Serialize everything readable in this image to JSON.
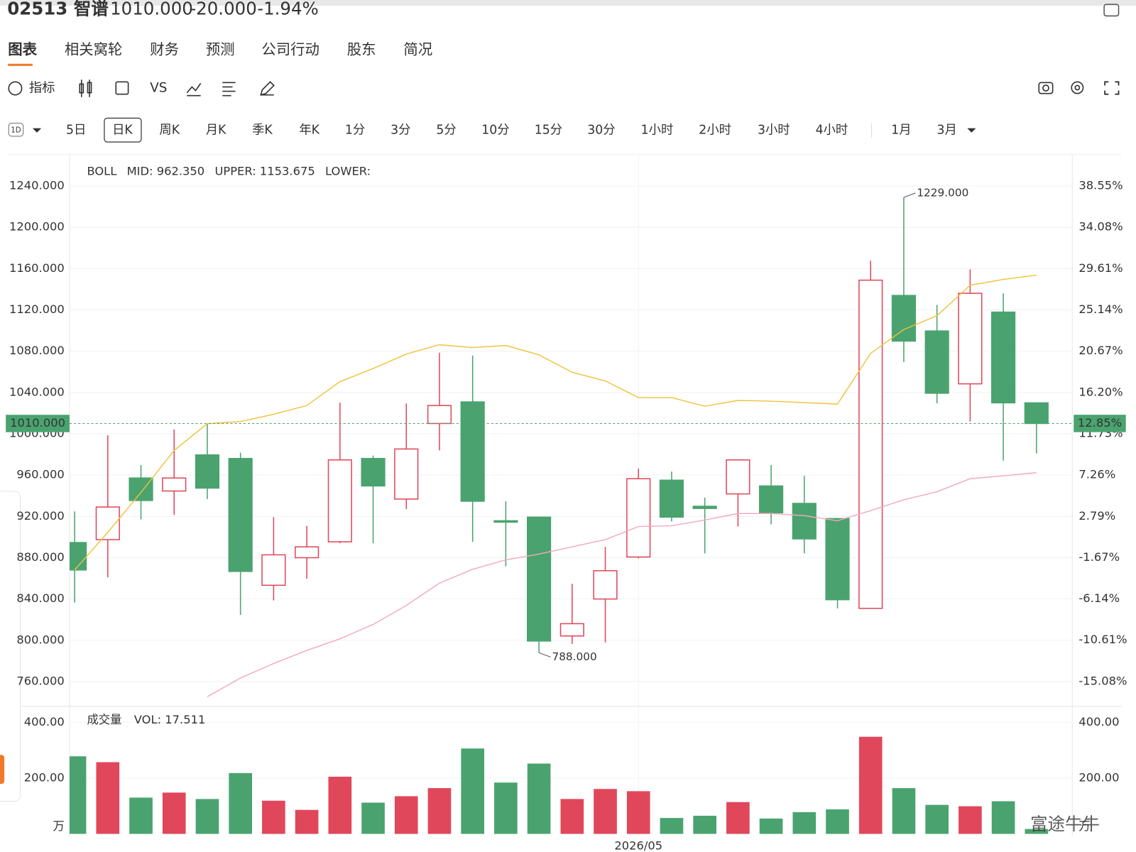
{
  "header": {
    "symbol": "02513 智谱",
    "price": "1010.000",
    "change": "-20.000",
    "change_pct": "-1.94%"
  },
  "tabs": [
    "图表",
    "相关窝轮",
    "财务",
    "预测",
    "公司行动",
    "股东",
    "简况"
  ],
  "toolbar": {
    "indicator": "指标",
    "compare": "VS"
  },
  "periods": [
    "5日",
    "日K",
    "周K",
    "月K",
    "季K",
    "年K",
    "1分",
    "3分",
    "5分",
    "10分",
    "15分",
    "30分",
    "1小时",
    "2小时",
    "3小时",
    "4小时",
    "1月",
    "3月"
  ],
  "period_icon": "1D",
  "watermark": "富途牛牛",
  "chart_data": [
    {
      "type": "candlestick",
      "legend_title": "BOLL",
      "categories": [
        null,
        null,
        null,
        null,
        null,
        null,
        null,
        null,
        null,
        null,
        null,
        null,
        null,
        null,
        null,
        null,
        null,
        "2026/05",
        null,
        null,
        null,
        null,
        null,
        null,
        null,
        null,
        null,
        null,
        null,
        null
      ],
      "open": [
        894.7,
        897.5,
        957.2,
        944.6,
        979.6,
        976.1,
        853.3,
        880,
        895.4,
        976.1,
        936.8,
        1010,
        1030.9,
        915.8,
        919.3,
        804.2,
        840,
        880.7,
        955.1,
        929.8,
        941.8,
        949.5,
        932.6,
        917.9,
        830.9,
        1134,
        1099.6,
        1048.4,
        1117.9,
        1030
      ],
      "high": [
        924.9,
        998.6,
        969.8,
        1004.2,
        1009.8,
        981.8,
        919.3,
        910.9,
        1030.2,
        979,
        1029.5,
        1078.6,
        1075.8,
        934.7,
        919.3,
        854.7,
        890.5,
        966.3,
        963.5,
        938.2,
        974.7,
        969.8,
        959.3,
        917.9,
        1167.7,
        1229,
        1124.9,
        1159.3,
        1136.1,
        1030
      ],
      "low": [
        836.5,
        861,
        917.2,
        921.4,
        936.8,
        824.6,
        838.6,
        859.6,
        894,
        894,
        927,
        983.9,
        895.4,
        871.6,
        788,
        796.5,
        797.9,
        879.3,
        915.1,
        884.2,
        910.2,
        912.3,
        884.2,
        830.9,
        830.9,
        1069.5,
        1029.5,
        1011.9,
        974,
        981
      ],
      "close": [
        868.1,
        929.1,
        935.4,
        957.2,
        947.4,
        866.7,
        882.8,
        890.5,
        974.7,
        949.5,
        985.3,
        1027.4,
        934.7,
        914.4,
        799.3,
        816.1,
        867.4,
        956.5,
        919.3,
        927.7,
        974.7,
        923.5,
        898.2,
        839.3,
        1148.8,
        1089.8,
        1039.3,
        1136.1,
        1030,
        1010
      ],
      "up_color": "#e0475a",
      "down_color": "#4aa36f",
      "overlays": [
        {
          "name": "MID: 962.350",
          "color": "#f2a9c0",
          "values": [
            null,
            null,
            null,
            null,
            745.3,
            763.5,
            777.5,
            790.2,
            801.4,
            815.4,
            833.7,
            855.4,
            868.8,
            877.9,
            883.5,
            890.5,
            897.5,
            910.2,
            910.9,
            916.5,
            922.8,
            922.8,
            920.7,
            915.8,
            925.6,
            936.1,
            943.9,
            956.5,
            959.3,
            962.35
          ]
        },
        {
          "name": "UPPER: 1153.675",
          "color": "#f0c23a",
          "values": [
            868.1,
            904.6,
            943.2,
            983.9,
            1009.8,
            1011.9,
            1018.9,
            1027.4,
            1050.5,
            1063.2,
            1077.2,
            1086.3,
            1083.5,
            1085.6,
            1076.5,
            1059.6,
            1051.2,
            1035.1,
            1035.1,
            1026.7,
            1032.3,
            1031.6,
            1030.2,
            1028.8,
            1077.9,
            1101,
            1114.4,
            1143.9,
            1149.5,
            1153.675
          ]
        },
        {
          "name": "LOWER:",
          "color": "#a9d9f2",
          "values": [
            null,
            null,
            null,
            null,
            null,
            null,
            null,
            null,
            null,
            null,
            null,
            null,
            null,
            null,
            null,
            null,
            null,
            null,
            null,
            null,
            null,
            null,
            null,
            null,
            null,
            null,
            null,
            null,
            null,
            null
          ]
        }
      ],
      "ylim": [
        736,
        1270
      ],
      "yticks": [
        {
          "value": 760,
          "label": "760.000"
        },
        {
          "value": 800,
          "label": "800.000"
        },
        {
          "value": 840,
          "label": "840.000"
        },
        {
          "value": 880,
          "label": "880.000"
        },
        {
          "value": 920,
          "label": "920.000"
        },
        {
          "value": 960,
          "label": "960.000"
        },
        {
          "value": 1000,
          "label": "1000.000"
        },
        {
          "value": 1040,
          "label": "1040.000"
        },
        {
          "value": 1080,
          "label": "1080.000"
        },
        {
          "value": 1120,
          "label": "1120.000"
        },
        {
          "value": 1160,
          "label": "1160.000"
        },
        {
          "value": 1200,
          "label": "1200.000"
        },
        {
          "value": 1240,
          "label": "1240.000"
        }
      ],
      "y2lim": [
        -17.77,
        41.9
      ],
      "y2ticks": [
        {
          "value": -15.08,
          "label": "-15.08%"
        },
        {
          "value": -10.61,
          "label": "-10.61%"
        },
        {
          "value": -6.14,
          "label": "-6.14%"
        },
        {
          "value": -1.67,
          "label": "-1.67%"
        },
        {
          "value": 2.79,
          "label": "2.79%"
        },
        {
          "value": 7.26,
          "label": "7.26%"
        },
        {
          "value": 11.73,
          "label": "11.73%"
        },
        {
          "value": 16.2,
          "label": "16.20%"
        },
        {
          "value": 20.67,
          "label": "20.67%"
        },
        {
          "value": 25.14,
          "label": "25.14%"
        },
        {
          "value": 29.61,
          "label": "29.61%"
        },
        {
          "value": 34.08,
          "label": "34.08%"
        },
        {
          "value": 38.55,
          "label": "38.55%"
        }
      ],
      "annotations": [
        {
          "value": 1229,
          "label": "1229.000"
        },
        {
          "value": 788,
          "label": "788.000"
        }
      ],
      "last_price": {
        "value": 1010,
        "label": "1010.000"
      },
      "last_pct": {
        "value": 12.85,
        "label": "12.85%"
      },
      "grid": true
    },
    {
      "type": "bar",
      "title": "成交量",
      "legend_label": "VOL: 17.511",
      "values": [
        278,
        257,
        130,
        148,
        125,
        218,
        119,
        86,
        205,
        112,
        135,
        164,
        306,
        184,
        252,
        125,
        161,
        153,
        57,
        65,
        114,
        55,
        78,
        88,
        348,
        164,
        104,
        99,
        117,
        17.511
      ],
      "ylim": [
        0,
        444
      ],
      "yticks": [
        {
          "value": 200,
          "label": "200.00"
        },
        {
          "value": 400,
          "label": "400.00"
        }
      ],
      "unit": "万",
      "grid": true
    }
  ]
}
